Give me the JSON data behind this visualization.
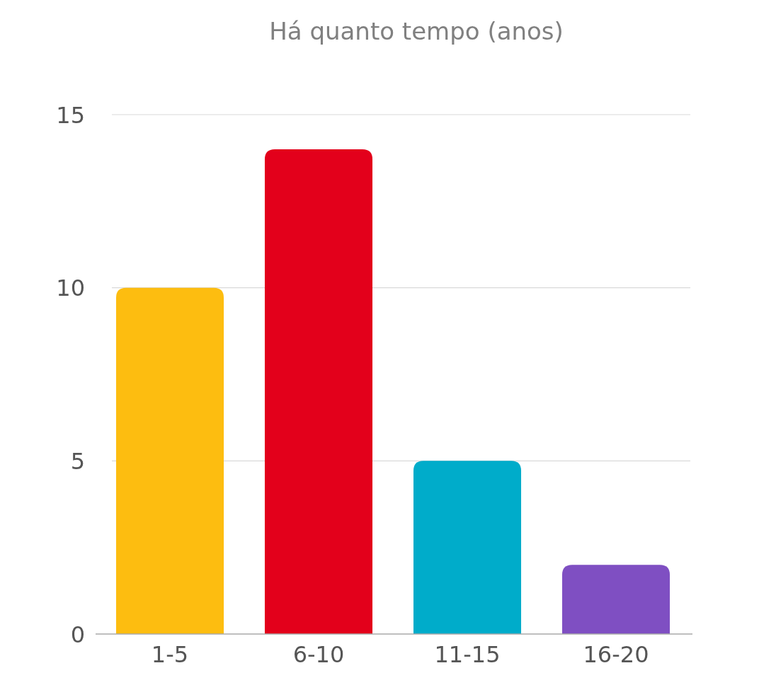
{
  "chart_data": {
    "type": "bar",
    "title": "Há quanto tempo (anos)",
    "categories": [
      "1-5",
      "6-10",
      "11-15",
      "16-20"
    ],
    "values": [
      10,
      14,
      5,
      2
    ],
    "colors": [
      "#fdbd10",
      "#e3001b",
      "#00acca",
      "#7f4fc2"
    ],
    "ylim": [
      0,
      15
    ],
    "yticks": [
      0,
      5,
      10,
      15
    ],
    "grid": "y"
  }
}
